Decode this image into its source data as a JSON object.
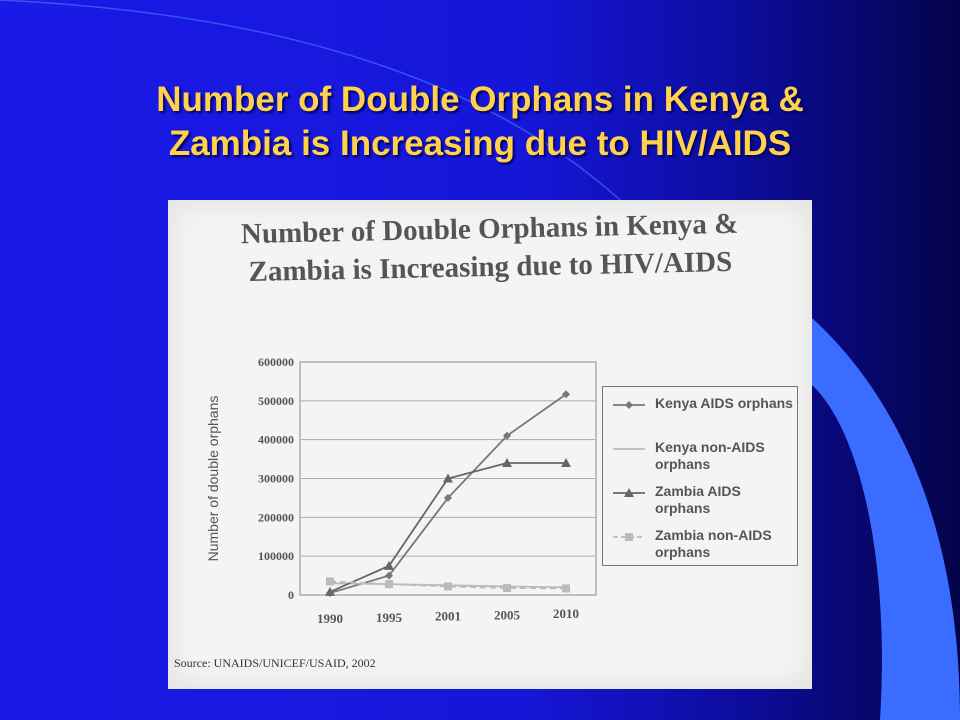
{
  "slide": {
    "title_line1": "Number of Double Orphans in Kenya &",
    "title_line2": "Zambia is Increasing due to HIV/AIDS"
  },
  "scan": {
    "title_line1": "Number of Double Orphans in Kenya &",
    "title_line2": "Zambia is Increasing due to HIV/AIDS",
    "source": "Source: UNAIDS/UNICEF/USAID, 2002"
  },
  "colors": {
    "background": "#1616d8",
    "title": "#ffd24a",
    "accent_curve": "#3a6cff"
  },
  "chart_data": {
    "type": "line",
    "title": "Number of Double Orphans in Kenya & Zambia is Increasing due to HIV/AIDS",
    "xlabel": "",
    "ylabel": "Number of double orphans",
    "categories": [
      "1990",
      "1995",
      "2001",
      "2005",
      "2010"
    ],
    "ylim": [
      0,
      600000
    ],
    "yticks": [
      "0",
      "100000",
      "200000",
      "300000",
      "400000",
      "500000",
      "600000"
    ],
    "grid": true,
    "legend_position": "right",
    "series": [
      {
        "name": "Kenya AIDS orphans",
        "marker": "diamond",
        "color": "#777777",
        "values": [
          5000,
          50000,
          250000,
          410000,
          517000
        ]
      },
      {
        "name": "Kenya non-AIDS orphans",
        "marker": "none",
        "color": "#bbbbbb",
        "values": [
          30000,
          28000,
          25000,
          22000,
          20000
        ]
      },
      {
        "name": "Zambia AIDS orphans",
        "marker": "triangle",
        "color": "#666666",
        "values": [
          8000,
          75000,
          300000,
          340000,
          340000
        ]
      },
      {
        "name": "Zambia non-AIDS orphans",
        "marker": "square",
        "color": "#bbbbbb",
        "dashed": true,
        "values": [
          35000,
          28000,
          22000,
          18000,
          17000
        ]
      }
    ]
  }
}
